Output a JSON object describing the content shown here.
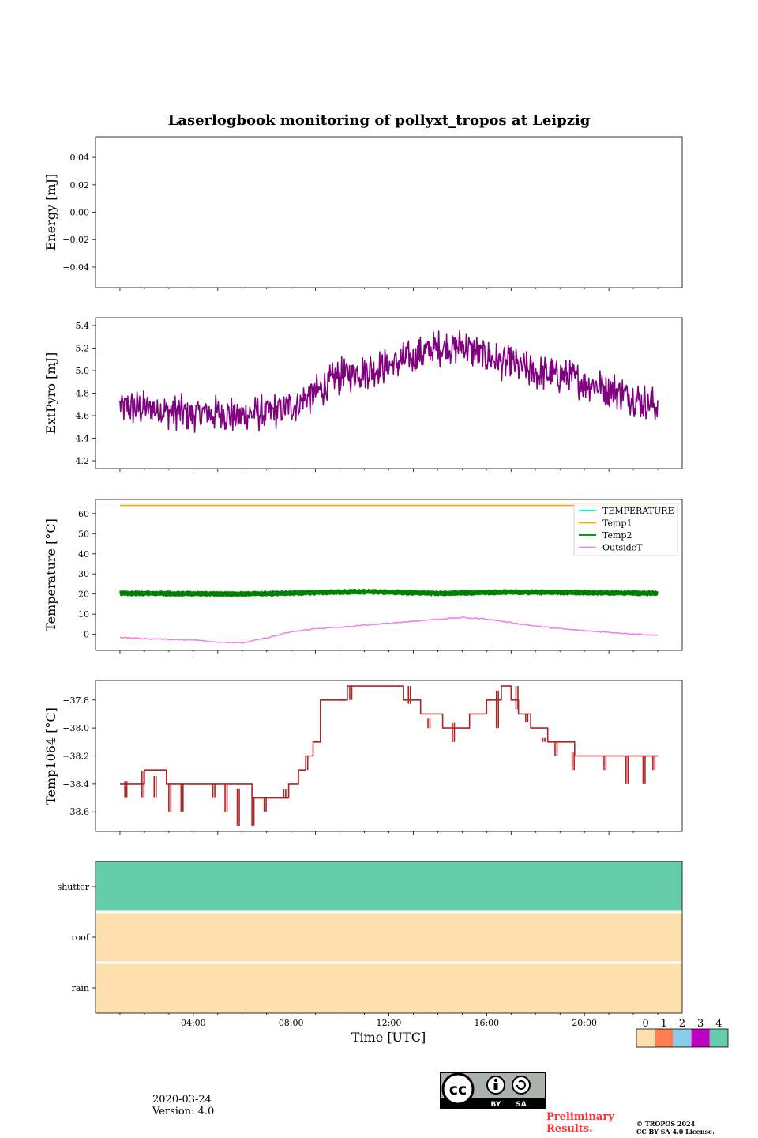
{
  "figure": {
    "title": "Laserlogbook monitoring of pollyxt_tropos at Leipzig",
    "date": "2020-03-24",
    "version": "Version: 4.0",
    "preliminary": [
      "Preliminary",
      "Results."
    ],
    "copyright": [
      "© TROPOS 2024.",
      "CC BY SA 4.0 License."
    ],
    "license_badge": {
      "by": "BY",
      "sa": "SA",
      "cc": "cc"
    }
  },
  "chart_data": [
    {
      "id": "energy",
      "type": "line",
      "ylabel": "Energy [mJ]",
      "ylim": [
        -0.055,
        0.055
      ],
      "yticks": [
        -0.04,
        -0.02,
        0.0,
        0.02,
        0.04
      ],
      "ytick_labels": [
        "−0.04",
        "−0.02",
        "0.00",
        "0.02",
        "0.04"
      ],
      "series": []
    },
    {
      "id": "extpyro",
      "type": "line",
      "ylabel": "ExtPyro [mJ]",
      "ylim": [
        4.13,
        5.47
      ],
      "yticks": [
        4.2,
        4.4,
        4.6,
        4.8,
        5.0,
        5.2,
        5.4
      ],
      "ytick_labels": [
        "4.2",
        "4.4",
        "4.6",
        "4.8",
        "5.0",
        "5.2",
        "5.4"
      ],
      "series": [
        {
          "name": "ExtPyro",
          "color": "#800080",
          "noise_amp": 0.17,
          "x": [
            1.0,
            2.0,
            3.0,
            4.0,
            5.0,
            6.0,
            7.0,
            8.0,
            9.0,
            10.0,
            11.0,
            12.0,
            13.0,
            14.0,
            15.0,
            16.0,
            17.0,
            18.0,
            19.0,
            20.0,
            21.0,
            22.0,
            23.0
          ],
          "y": [
            4.68,
            4.66,
            4.64,
            4.62,
            4.62,
            4.6,
            4.63,
            4.68,
            4.8,
            4.95,
            5.0,
            5.05,
            5.12,
            5.2,
            5.22,
            5.12,
            5.05,
            4.98,
            4.95,
            4.9,
            4.85,
            4.76,
            4.68
          ]
        }
      ]
    },
    {
      "id": "temperature",
      "type": "line",
      "ylabel": "Temperature [°C]",
      "ylim": [
        -8,
        67
      ],
      "yticks": [
        0,
        10,
        20,
        30,
        40,
        50,
        60
      ],
      "ytick_labels": [
        "0",
        "10",
        "20",
        "30",
        "40",
        "50",
        "60"
      ],
      "legend": {
        "placement": "top-right",
        "entries": [
          "TEMPERATURE",
          "Temp1",
          "Temp2",
          "OutsideT"
        ]
      },
      "series": [
        {
          "name": "TEMPERATURE",
          "color": "#00e5e5",
          "x": [],
          "y": []
        },
        {
          "name": "Temp1",
          "color": "#ffa500",
          "x": [
            1.0,
            23.0
          ],
          "y": [
            64,
            64
          ]
        },
        {
          "name": "Temp2",
          "color": "#008000",
          "noise_amp": 1.3,
          "x": [
            1.0,
            6.0,
            10.0,
            11.0,
            14.0,
            17.0,
            23.0
          ],
          "y": [
            20.4,
            20.0,
            21.0,
            21.2,
            20.4,
            21.0,
            20.4
          ]
        },
        {
          "name": "OutsideT",
          "color": "#ee82ee",
          "x": [
            1.0,
            2.0,
            3.0,
            4.0,
            5.0,
            6.0,
            7.0,
            8.0,
            9.0,
            10.0,
            11.0,
            12.0,
            13.0,
            14.0,
            15.0,
            16.0,
            17.0,
            18.0,
            19.0,
            20.0,
            21.0,
            22.0,
            23.0
          ],
          "y": [
            -1.5,
            -2.2,
            -2.5,
            -2.8,
            -3.8,
            -4.3,
            -1.8,
            1.2,
            2.8,
            3.5,
            4.5,
            5.5,
            6.5,
            7.5,
            8.3,
            7.6,
            5.8,
            4.1,
            2.8,
            1.8,
            1.0,
            0.2,
            -0.5
          ]
        }
      ]
    },
    {
      "id": "temp1064",
      "type": "line",
      "ylabel": "Temp1064 [°C]",
      "ylim": [
        -38.74,
        -37.66
      ],
      "yticks": [
        -38.6,
        -38.4,
        -38.2,
        -38.0,
        -37.8
      ],
      "ytick_labels": [
        "−38.6",
        "−38.4",
        "−38.2",
        "−38.0",
        "−37.8"
      ],
      "series": [
        {
          "name": "Temp1064",
          "color": "#b22222",
          "step": true,
          "x": [
            1.0,
            2.0,
            2.9,
            4.6,
            5.5,
            6.4,
            7.4,
            7.9,
            8.3,
            8.6,
            8.9,
            9.2,
            10.3,
            11.5,
            12.6,
            13.3,
            14.2,
            15.3,
            16.0,
            16.6,
            17.0,
            17.3,
            17.8,
            18.5,
            19.2,
            19.6,
            20.3,
            21.3,
            23.0
          ],
          "y": [
            -38.4,
            -38.3,
            -38.4,
            -38.4,
            -38.4,
            -38.5,
            -38.5,
            -38.4,
            -38.3,
            -38.2,
            -38.1,
            -37.8,
            -37.7,
            -37.7,
            -37.8,
            -37.9,
            -38.0,
            -37.9,
            -37.8,
            -37.7,
            -37.8,
            -37.9,
            -38.0,
            -38.1,
            -38.1,
            -38.2,
            -38.2,
            -38.2,
            -38.2
          ],
          "spikes": [
            [
              1.2,
              -38.5
            ],
            [
              1.9,
              -38.5
            ],
            [
              2.4,
              -38.5
            ],
            [
              3.0,
              -38.6
            ],
            [
              3.5,
              -38.6
            ],
            [
              4.8,
              -38.5
            ],
            [
              5.3,
              -38.6
            ],
            [
              5.8,
              -38.7
            ],
            [
              6.4,
              -38.7
            ],
            [
              6.9,
              -38.6
            ],
            [
              7.7,
              -38.5
            ],
            [
              8.6,
              -38.3
            ],
            [
              10.4,
              -37.8
            ],
            [
              12.8,
              -37.7
            ],
            [
              13.6,
              -38.0
            ],
            [
              14.6,
              -38.1
            ],
            [
              16.4,
              -38.0
            ],
            [
              17.2,
              -37.7
            ],
            [
              17.6,
              -37.9
            ],
            [
              18.3,
              -38.1
            ],
            [
              18.8,
              -38.2
            ],
            [
              19.5,
              -38.3
            ],
            [
              20.8,
              -38.3
            ],
            [
              21.7,
              -38.4
            ],
            [
              22.4,
              -38.4
            ],
            [
              22.8,
              -38.3
            ]
          ]
        }
      ]
    },
    {
      "id": "status",
      "type": "heatmap",
      "rows": [
        "shutter",
        "roof",
        "rain"
      ],
      "row_values": [
        4,
        0,
        0
      ],
      "xlabel": "Time [UTC]",
      "xlim": [
        0,
        24
      ],
      "xticks": [
        4,
        8,
        12,
        16,
        20
      ],
      "xtick_labels": [
        "04:00",
        "08:00",
        "12:00",
        "16:00",
        "20:00"
      ],
      "colorbar": {
        "labels": [
          "0",
          "1",
          "2",
          "3",
          "4"
        ],
        "colors": [
          "#fde0ad",
          "#ff7f50",
          "#87ceeb",
          "#c000c0",
          "#66cdaa"
        ]
      }
    }
  ]
}
